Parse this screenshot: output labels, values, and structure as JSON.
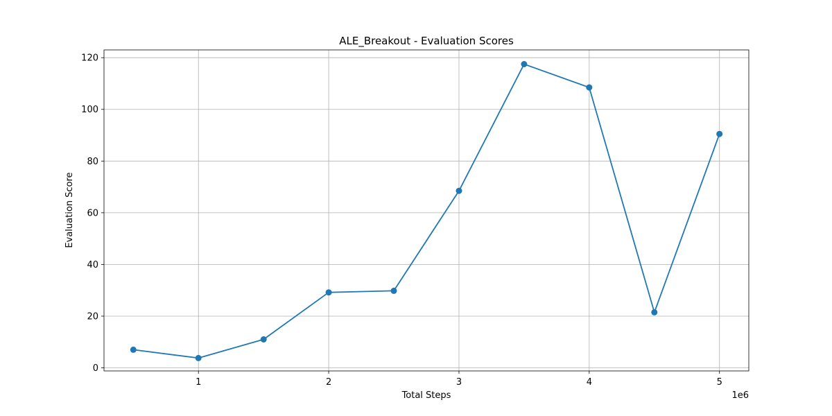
{
  "chart_data": {
    "type": "line",
    "title": "ALE_Breakout - Evaluation Scores",
    "xlabel": "Total Steps",
    "ylabel": "Evaluation Score",
    "x_offset_label": "1e6",
    "x": [
      500000,
      1000000,
      1500000,
      2000000,
      2500000,
      3000000,
      3500000,
      4000000,
      4500000,
      5000000
    ],
    "series": [
      {
        "values": [
          7.0,
          3.8,
          11.0,
          29.2,
          29.8,
          68.5,
          117.5,
          108.5,
          21.5,
          90.5
        ],
        "color": "#1f77b4",
        "marker": "circle"
      }
    ],
    "xlim": [
      275000,
      5225000
    ],
    "ylim": [
      -1.2,
      123.0
    ],
    "x_ticks": [
      1000000,
      2000000,
      3000000,
      4000000,
      5000000
    ],
    "x_tick_labels": [
      "1",
      "2",
      "3",
      "4",
      "5"
    ],
    "y_ticks": [
      0,
      20,
      40,
      60,
      80,
      100,
      120
    ],
    "y_tick_labels": [
      "0",
      "20",
      "40",
      "60",
      "80",
      "100",
      "120"
    ],
    "grid": true,
    "legend": "none"
  }
}
